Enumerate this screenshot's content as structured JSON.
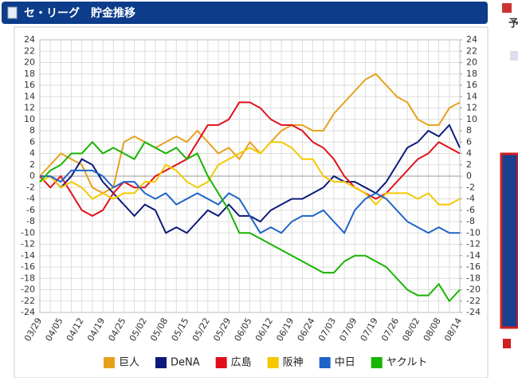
{
  "header": {
    "title": "セ・リーグ　貯金推移"
  },
  "sidebar": {
    "label": "予"
  },
  "chart_data": {
    "type": "line",
    "categories": [
      "03/29",
      null,
      "04/05",
      null,
      "04/12",
      null,
      "04/19",
      null,
      "04/25",
      null,
      "05/02",
      null,
      "05/08",
      null,
      "05/15",
      null,
      "05/22",
      null,
      "05/29",
      null,
      "06/05",
      null,
      "06/12",
      null,
      "06/19",
      null,
      "06/24",
      null,
      "07/03",
      null,
      "07/09",
      null,
      "07/19",
      null,
      "07/26",
      null,
      "08/02",
      null,
      "08/08",
      null,
      "08/14"
    ],
    "series": [
      {
        "name": "巨人",
        "color": "#e8a01c",
        "values": [
          0,
          2,
          4,
          3,
          2,
          -2,
          -3,
          -2,
          6,
          7,
          6,
          5,
          6,
          7,
          6,
          8,
          6,
          4,
          5,
          3,
          6,
          4,
          6,
          8,
          9,
          9,
          8,
          8,
          11,
          13,
          15,
          17,
          18,
          16,
          14,
          13,
          10,
          9,
          9,
          12,
          13
        ]
      },
      {
        "name": "DeNA",
        "color": "#0b1a7a",
        "values": [
          0,
          0,
          -2,
          0,
          3,
          2,
          -1,
          -3,
          -5,
          -7,
          -5,
          -6,
          -10,
          -9,
          -10,
          -8,
          -6,
          -7,
          -5,
          -7,
          -7,
          -8,
          -6,
          -5,
          -4,
          -4,
          -3,
          -2,
          0,
          -1,
          -1,
          -2,
          -3,
          -1,
          2,
          5,
          6,
          8,
          7,
          9,
          5
        ]
      },
      {
        "name": "広島",
        "color": "#e0101a",
        "values": [
          0,
          -2,
          0,
          -3,
          -6,
          -7,
          -6,
          -3,
          -1,
          -2,
          -2,
          0,
          1,
          2,
          3,
          6,
          9,
          9,
          10,
          13,
          13,
          12,
          10,
          9,
          9,
          8,
          6,
          5,
          3,
          0,
          -2,
          -3,
          -4,
          -3,
          -1,
          1,
          3,
          4,
          6,
          5,
          4
        ]
      },
      {
        "name": "阪神",
        "color": "#f5c800",
        "values": [
          -1,
          0,
          -2,
          -1,
          -2,
          -4,
          -3,
          -4,
          -3,
          -3,
          -1,
          -1,
          2,
          1,
          -1,
          -2,
          -1,
          2,
          3,
          4,
          5,
          4,
          6,
          6,
          5,
          3,
          3,
          0,
          -1,
          -1,
          -2,
          -3,
          -5,
          -3,
          -3,
          -3,
          -4,
          -3,
          -5,
          -5,
          -4
        ]
      },
      {
        "name": "中日",
        "color": "#1e64c8",
        "values": [
          0,
          0,
          -1,
          1,
          1,
          1,
          0,
          -2,
          -1,
          -1,
          -3,
          -4,
          -3,
          -5,
          -4,
          -3,
          -4,
          -5,
          -3,
          -4,
          -7,
          -10,
          -9,
          -10,
          -8,
          -7,
          -7,
          -6,
          -8,
          -10,
          -6,
          -4,
          -3,
          -4,
          -6,
          -8,
          -9,
          -10,
          -9,
          -10,
          -10
        ]
      },
      {
        "name": "ヤクルト",
        "color": "#18b400",
        "values": [
          -1,
          1,
          2,
          4,
          4,
          6,
          4,
          5,
          4,
          3,
          6,
          5,
          4,
          5,
          3,
          4,
          0,
          -3,
          -6,
          -10,
          -10,
          -11,
          -12,
          -13,
          -14,
          -15,
          -16,
          -17,
          -17,
          -15,
          -14,
          -14,
          -15,
          -16,
          -18,
          -20,
          -21,
          -21,
          -19,
          -22,
          -20
        ]
      }
    ],
    "ylim": [
      -24,
      24
    ],
    "yticks": [
      24,
      22,
      20,
      18,
      16,
      14,
      12,
      10,
      8,
      6,
      4,
      2,
      0,
      -2,
      -4,
      -6,
      -8,
      -10,
      -12,
      -14,
      -16,
      -18,
      -20,
      -22,
      -24
    ],
    "y2lim": [
      -24,
      24
    ],
    "y2ticks": [
      24,
      22,
      20,
      18,
      16,
      14,
      12,
      10,
      8,
      6,
      4,
      2,
      0,
      -2,
      -4,
      -6,
      -8,
      -10,
      -12,
      -14,
      -16,
      -18,
      -20,
      -22,
      -24
    ],
    "grid": true
  }
}
